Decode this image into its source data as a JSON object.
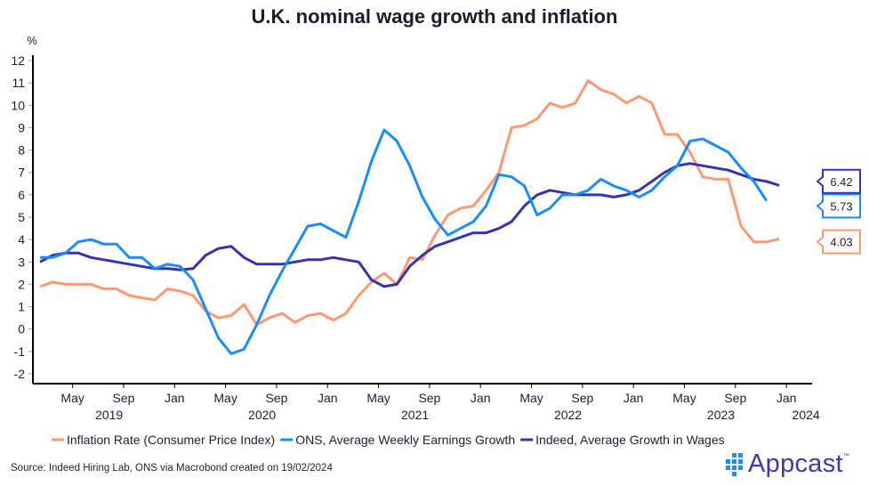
{
  "title": "U.K. nominal wage growth and inflation",
  "source": "Source: Indeed Hiring Lab, ONS via Macrobond created on 19/02/2024",
  "logo": {
    "text": "Appcast",
    "tm": "™",
    "icon": "appcast-dots-icon",
    "color": "#3a3ab4",
    "icon_color": "#1a8cff"
  },
  "chart_data": {
    "type": "line",
    "title": "U.K. nominal wage growth and inflation",
    "ylabel": "%",
    "xlabel": "",
    "ylim": [
      -2,
      12
    ],
    "yticks": [
      -2,
      -1,
      0,
      1,
      2,
      3,
      4,
      5,
      6,
      7,
      8,
      9,
      10,
      11,
      12
    ],
    "x_start": "2019-03",
    "x_frequency": "monthly",
    "xticks": [
      {
        "month_index": 2,
        "label": "May",
        "year": "2019"
      },
      {
        "month_index": 6,
        "label": "Sep",
        "year": ""
      },
      {
        "month_index": 10,
        "label": "Jan",
        "year": ""
      },
      {
        "month_index": 14,
        "label": "May",
        "year": "2020"
      },
      {
        "month_index": 18,
        "label": "Sep",
        "year": ""
      },
      {
        "month_index": 22,
        "label": "Jan",
        "year": ""
      },
      {
        "month_index": 26,
        "label": "May",
        "year": "2021"
      },
      {
        "month_index": 30,
        "label": "Sep",
        "year": ""
      },
      {
        "month_index": 34,
        "label": "Jan",
        "year": ""
      },
      {
        "month_index": 38,
        "label": "May",
        "year": "2022"
      },
      {
        "month_index": 42,
        "label": "Sep",
        "year": ""
      },
      {
        "month_index": 46,
        "label": "Jan",
        "year": ""
      },
      {
        "month_index": 50,
        "label": "May",
        "year": "2023"
      },
      {
        "month_index": 54,
        "label": "Sep",
        "year": ""
      },
      {
        "month_index": 58,
        "label": "Jan",
        "year": "2024"
      }
    ],
    "x_axis_months": 60,
    "legend_position": "bottom",
    "grid": false,
    "series": [
      {
        "name": "Inflation Rate (Consumer Price Index)",
        "color": "#ff9870",
        "last_label": "4.03",
        "values": [
          1.9,
          2.1,
          2.0,
          2.0,
          2.0,
          1.8,
          1.8,
          1.5,
          1.4,
          1.3,
          1.8,
          1.7,
          1.5,
          0.8,
          0.5,
          0.6,
          1.1,
          0.2,
          0.5,
          0.7,
          0.3,
          0.6,
          0.7,
          0.4,
          0.7,
          1.5,
          2.1,
          2.5,
          2.0,
          3.2,
          3.1,
          4.2,
          5.1,
          5.4,
          5.5,
          6.2,
          7.0,
          9.0,
          9.1,
          9.4,
          10.1,
          9.9,
          10.1,
          11.1,
          10.7,
          10.5,
          10.1,
          10.4,
          10.1,
          8.7,
          8.7,
          7.9,
          6.8,
          6.7,
          6.7,
          4.6,
          3.9,
          3.9,
          4.03
        ]
      },
      {
        "name": "ONS, Average Weekly Earnings Growth",
        "color": "#1a8cff",
        "last_label": "5.73",
        "values": [
          3.2,
          3.2,
          3.4,
          3.9,
          4.0,
          3.8,
          3.8,
          3.2,
          3.2,
          2.7,
          2.9,
          2.8,
          2.2,
          0.9,
          -0.4,
          -1.1,
          -0.9,
          0.2,
          1.5,
          2.6,
          3.6,
          4.6,
          4.7,
          4.4,
          4.1,
          5.7,
          7.5,
          8.9,
          8.4,
          7.3,
          5.9,
          4.9,
          4.2,
          4.5,
          4.8,
          5.5,
          6.9,
          6.8,
          6.4,
          5.1,
          5.4,
          6.0,
          6.0,
          6.2,
          6.7,
          6.4,
          6.2,
          5.9,
          6.2,
          6.8,
          7.3,
          8.4,
          8.5,
          8.2,
          7.9,
          7.2,
          6.6,
          5.73
        ]
      },
      {
        "name": "Indeed, Average Growth in Wages",
        "color": "#3333b3",
        "last_label": "6.42",
        "values": [
          3.0,
          3.3,
          3.4,
          3.4,
          3.2,
          3.1,
          3.0,
          2.9,
          2.8,
          2.7,
          2.7,
          2.65,
          2.7,
          3.3,
          3.6,
          3.7,
          3.2,
          2.9,
          2.9,
          2.9,
          3.0,
          3.1,
          3.1,
          3.2,
          3.1,
          3.0,
          2.2,
          1.9,
          2.0,
          2.8,
          3.3,
          3.7,
          3.9,
          4.1,
          4.3,
          4.3,
          4.5,
          4.8,
          5.5,
          6.0,
          6.2,
          6.1,
          6.0,
          6.0,
          6.0,
          5.9,
          6.0,
          6.2,
          6.6,
          7.0,
          7.3,
          7.4,
          7.3,
          7.2,
          7.1,
          6.9,
          6.7,
          6.6,
          6.42
        ]
      }
    ]
  }
}
